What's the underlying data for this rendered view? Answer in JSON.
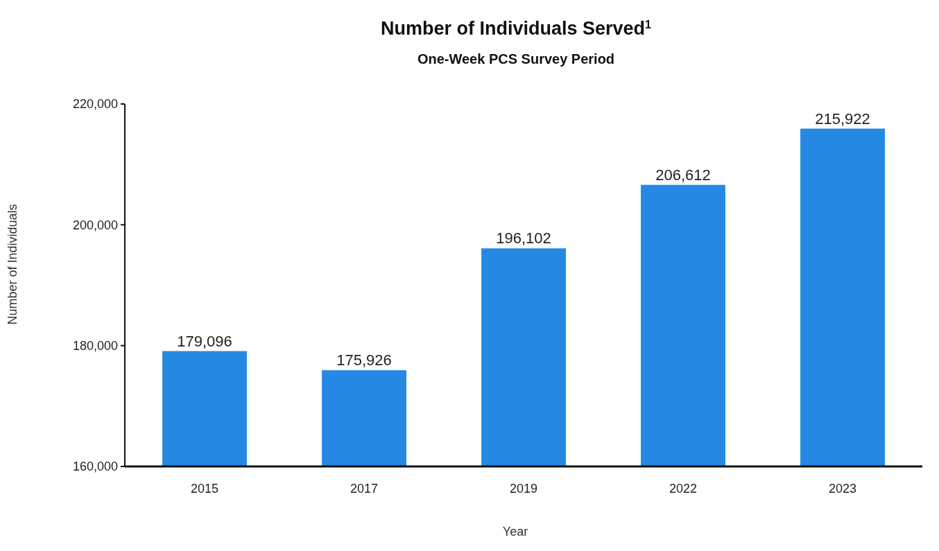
{
  "chart_data": {
    "type": "bar",
    "title": "Number of Individuals Served$^{1}$",
    "subtitle": "One-Week PCS Survey Period",
    "xlabel": "Year",
    "ylabel": "Number of Individuals",
    "categories": [
      "2015",
      "2017",
      "2019",
      "2022",
      "2023"
    ],
    "values": [
      179096,
      175926,
      196102,
      206612,
      215922
    ],
    "color": "#2589e3",
    "ylim": [
      160000,
      220000
    ],
    "yticks": [
      {
        "value": 160000,
        "label": "160,000"
      },
      {
        "value": 180000,
        "label": "180,000"
      },
      {
        "value": 200000,
        "label": "200,000"
      },
      {
        "value": 220000,
        "label": "220,000"
      }
    ],
    "value_labels": [
      "179,096",
      "175,926",
      "196,102",
      "206,612",
      "215,922"
    ],
    "grid": false
  }
}
